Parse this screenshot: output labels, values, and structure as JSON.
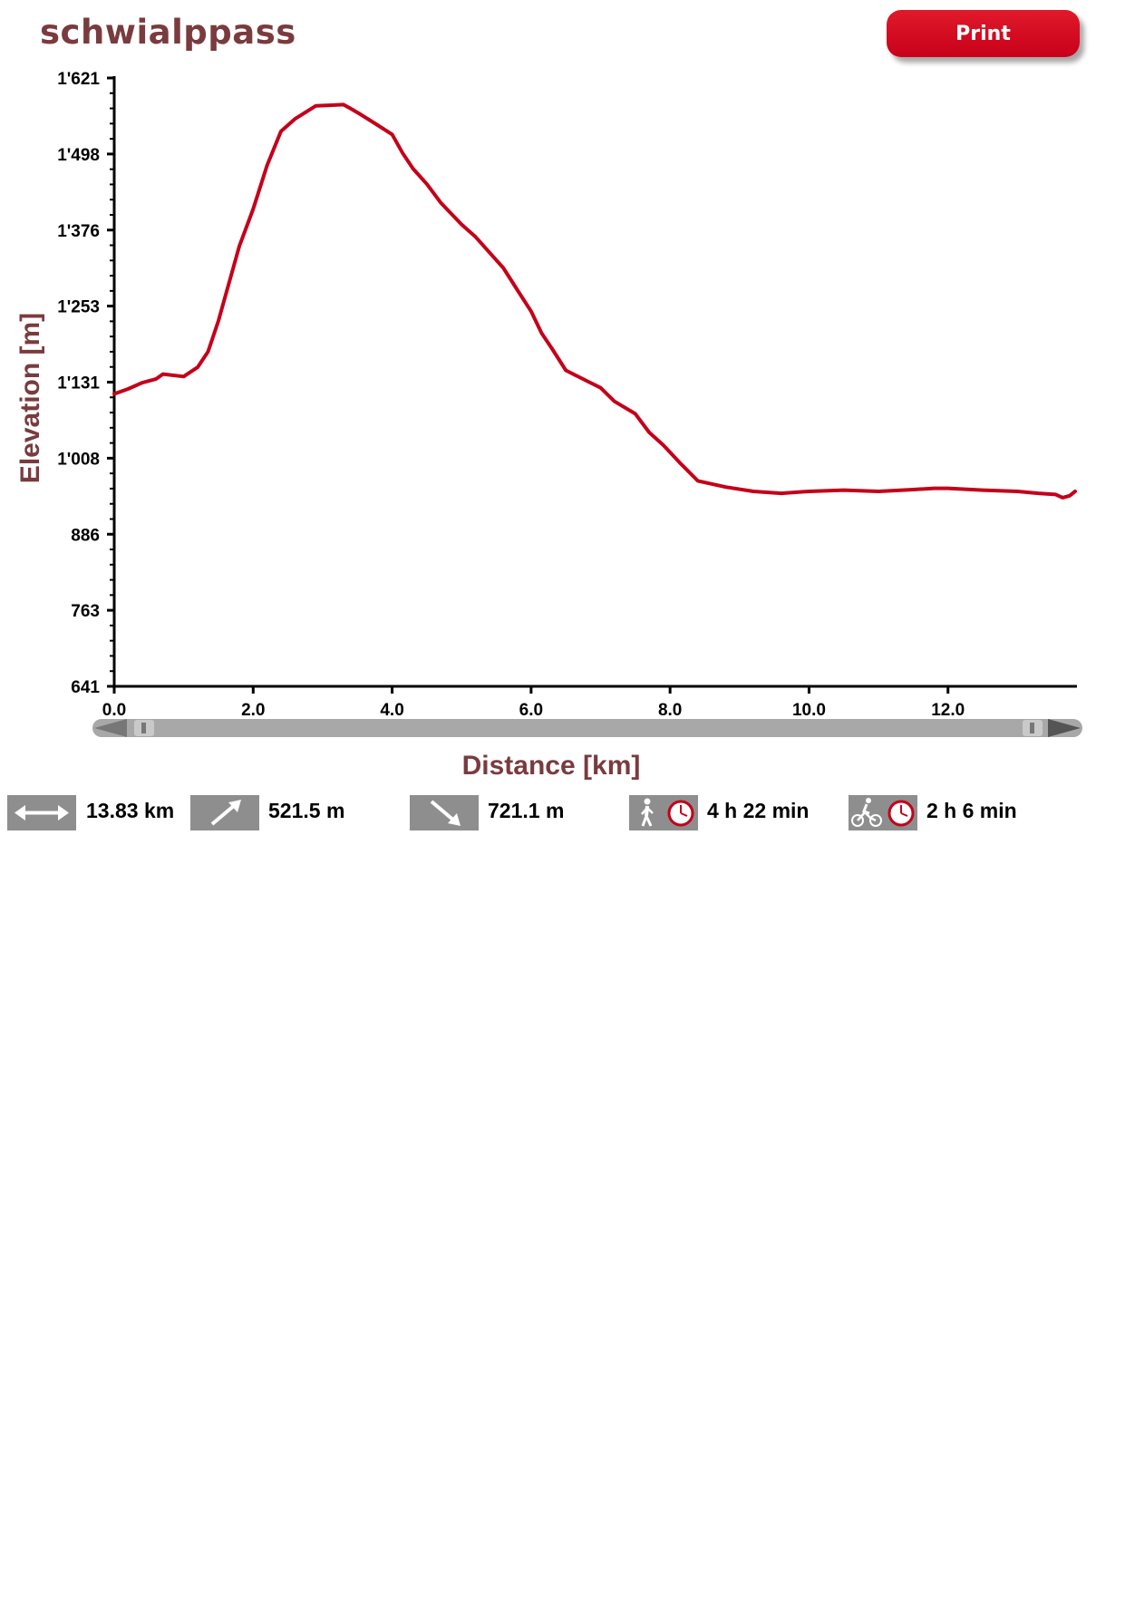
{
  "page": {
    "title": "schwialppass",
    "print_label": "Print"
  },
  "colors": {
    "profile_line": "#c4001a",
    "title": "#7a3b3e",
    "icon_bg": "#8e8e8e"
  },
  "chart_data": {
    "type": "line",
    "title": "",
    "xlabel": "Distance [km]",
    "ylabel": "Elevation [m]",
    "xlim": [
      0,
      13.83
    ],
    "ylim": [
      641,
      1621
    ],
    "x_ticks": [
      "0.0",
      "2.0",
      "4.0",
      "6.0",
      "8.0",
      "10.0",
      "12.0"
    ],
    "y_ticks": [
      "641",
      "763",
      "886",
      "1'008",
      "1'131",
      "1'253",
      "1'376",
      "1'498",
      "1'621"
    ],
    "grid": false,
    "series": [
      {
        "x": [
          0.0,
          0.2,
          0.4,
          0.6,
          0.7,
          1.0,
          1.2,
          1.35,
          1.5,
          1.65,
          1.8,
          2.0,
          2.2,
          2.4,
          2.6,
          2.9,
          3.1,
          3.3,
          3.4,
          3.55,
          3.75,
          4.0,
          4.15,
          4.3,
          4.5,
          4.7,
          5.0,
          5.2,
          5.4,
          5.6,
          5.8,
          6.0,
          6.15,
          6.3,
          6.5,
          6.8,
          7.0,
          7.2,
          7.5,
          7.7,
          7.9,
          8.15,
          8.4,
          8.8,
          9.2,
          9.6,
          10.0,
          10.5,
          11.0,
          11.5,
          11.8,
          12.0,
          12.5,
          13.0,
          13.3,
          13.55,
          13.65,
          13.75,
          13.83
        ],
        "values": [
          1112,
          1120,
          1130,
          1136,
          1144,
          1140,
          1155,
          1180,
          1230,
          1290,
          1350,
          1410,
          1480,
          1535,
          1555,
          1576,
          1577,
          1578,
          1572,
          1562,
          1548,
          1530,
          1500,
          1475,
          1450,
          1420,
          1385,
          1365,
          1340,
          1315,
          1280,
          1245,
          1210,
          1185,
          1150,
          1133,
          1122,
          1100,
          1080,
          1050,
          1030,
          1000,
          972,
          962,
          955,
          952,
          955,
          957,
          955,
          958,
          960,
          960,
          957,
          955,
          952,
          950,
          945,
          948,
          955
        ]
      }
    ]
  },
  "stats": {
    "distance": "13.83 km",
    "ascent": "521.5 m",
    "descent": "721.1 m",
    "hiking_time": "4 h 22 min",
    "biking_time": "2 h 6 min"
  },
  "icons": {
    "distance": "horizontal-double-arrow-icon",
    "ascent": "up-right-arrow-icon",
    "descent": "down-right-arrow-icon",
    "hiking": "hiker-icon",
    "biking": "cyclist-icon",
    "clock": "clock-icon"
  }
}
